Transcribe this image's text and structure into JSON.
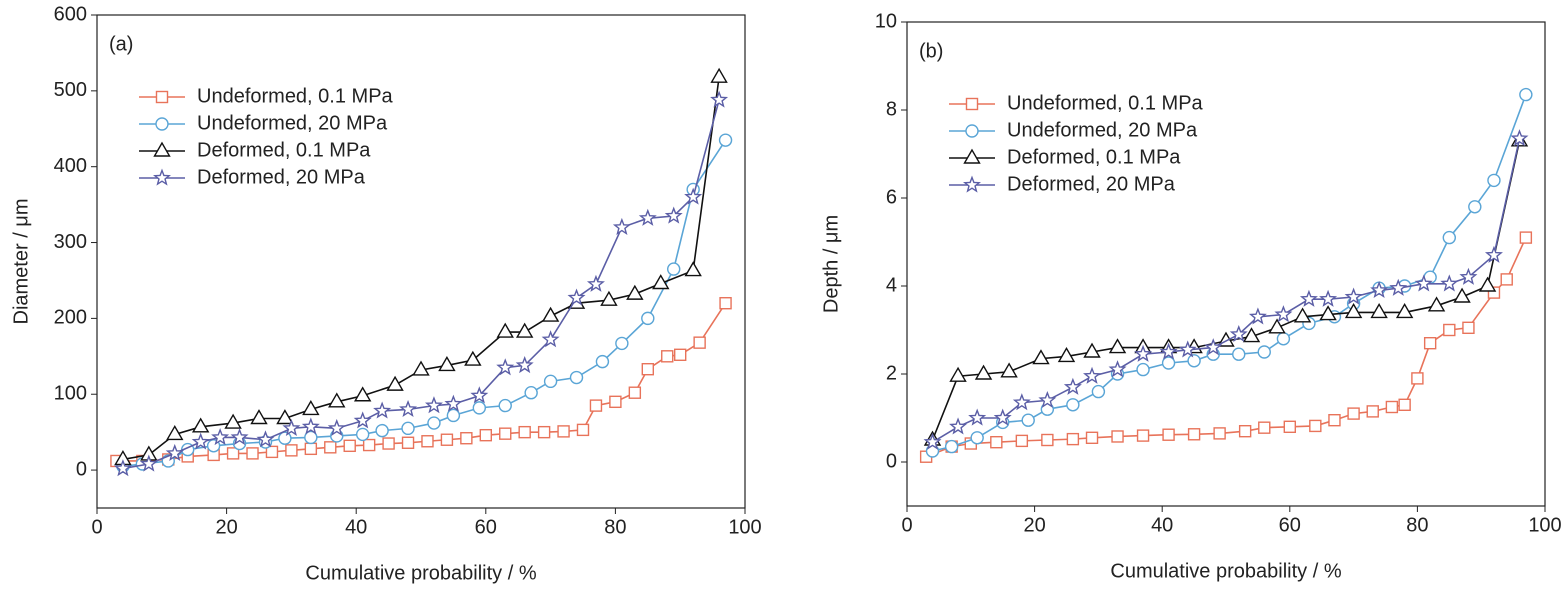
{
  "chart_data": [
    {
      "type": "line",
      "panel_label": "(a)",
      "xlabel": "Cumulative probability / %",
      "ylabel": "Diameter / μm",
      "xlim": [
        0,
        100
      ],
      "ylim": [
        -50,
        600
      ],
      "xticks": [
        0,
        20,
        40,
        60,
        80,
        100
      ],
      "yticks": [
        0,
        100,
        200,
        300,
        400,
        500,
        600
      ],
      "legend": "upper left",
      "series": [
        {
          "name": "Undeformed, 0.1 MPa",
          "color": "#e8735a",
          "marker": "square",
          "x": [
            3,
            7,
            11,
            14,
            18,
            21,
            24,
            27,
            30,
            33,
            36,
            39,
            42,
            45,
            48,
            51,
            54,
            57,
            60,
            63,
            66,
            69,
            72,
            75,
            77,
            80,
            83,
            85,
            88,
            90,
            93,
            97
          ],
          "values": [
            12,
            12,
            14,
            18,
            20,
            22,
            22,
            24,
            26,
            28,
            30,
            32,
            33,
            35,
            36,
            38,
            40,
            42,
            46,
            48,
            50,
            50,
            51,
            53,
            85,
            90,
            102,
            133,
            150,
            152,
            168,
            220
          ]
        },
        {
          "name": "Undeformed, 20 MPa",
          "color": "#5aa5d6",
          "marker": "circle",
          "x": [
            4,
            7,
            11,
            14,
            18,
            22,
            26,
            29,
            33,
            37,
            41,
            44,
            48,
            52,
            55,
            59,
            63,
            67,
            70,
            74,
            78,
            81,
            85,
            89,
            92,
            97
          ],
          "values": [
            5,
            8,
            12,
            27,
            32,
            35,
            37,
            42,
            43,
            45,
            47,
            52,
            55,
            62,
            72,
            82,
            85,
            102,
            117,
            122,
            143,
            167,
            200,
            265,
            370,
            435
          ]
        },
        {
          "name": "Deformed, 0.1 MPa",
          "color": "#111111",
          "marker": "triangle",
          "x": [
            4,
            8,
            12,
            16,
            21,
            25,
            29,
            33,
            37,
            41,
            46,
            50,
            54,
            58,
            63,
            66,
            70,
            74,
            79,
            83,
            87,
            92,
            96
          ],
          "values": [
            14,
            20,
            47,
            57,
            62,
            68,
            68,
            80,
            90,
            98,
            112,
            132,
            138,
            145,
            182,
            182,
            203,
            220,
            224,
            232,
            246,
            263,
            518
          ]
        },
        {
          "name": "Deformed, 20 MPa",
          "color": "#5b5ea6",
          "marker": "star",
          "x": [
            4,
            8,
            12,
            16,
            19,
            22,
            26,
            30,
            33,
            37,
            41,
            44,
            48,
            52,
            55,
            59,
            63,
            66,
            70,
            74,
            77,
            81,
            85,
            89,
            92,
            96
          ],
          "values": [
            2,
            8,
            22,
            37,
            43,
            43,
            40,
            55,
            57,
            55,
            65,
            78,
            80,
            85,
            87,
            98,
            135,
            138,
            172,
            227,
            245,
            320,
            332,
            335,
            360,
            488
          ]
        }
      ]
    },
    {
      "type": "line",
      "panel_label": "(b)",
      "xlabel": "Cumulative probability / %",
      "ylabel": "Depth / μm",
      "xlim": [
        0,
        100
      ],
      "ylim": [
        -1,
        10
      ],
      "xticks": [
        0,
        20,
        40,
        60,
        80,
        100
      ],
      "yticks": [
        0,
        2,
        4,
        6,
        8,
        10
      ],
      "legend": "upper left",
      "series": [
        {
          "name": "Undeformed, 0.1 MPa",
          "color": "#e8735a",
          "marker": "square",
          "x": [
            3,
            7,
            10,
            14,
            18,
            22,
            26,
            29,
            33,
            37,
            41,
            45,
            49,
            53,
            56,
            60,
            64,
            67,
            70,
            73,
            76,
            78,
            80,
            82,
            85,
            88,
            92,
            94,
            97
          ],
          "values": [
            0.12,
            0.35,
            0.42,
            0.45,
            0.48,
            0.5,
            0.52,
            0.55,
            0.58,
            0.6,
            0.62,
            0.63,
            0.65,
            0.7,
            0.78,
            0.8,
            0.82,
            0.95,
            1.1,
            1.15,
            1.25,
            1.3,
            1.9,
            2.7,
            3.0,
            3.05,
            3.85,
            4.15,
            5.1
          ]
        },
        {
          "name": "Undeformed, 20 MPa",
          "color": "#5aa5d6",
          "marker": "circle",
          "x": [
            4,
            7,
            11,
            15,
            19,
            22,
            26,
            30,
            33,
            37,
            41,
            45,
            48,
            52,
            56,
            59,
            63,
            67,
            70,
            74,
            78,
            82,
            85,
            89,
            92,
            97
          ],
          "values": [
            0.25,
            0.35,
            0.55,
            0.9,
            0.95,
            1.2,
            1.3,
            1.6,
            2.0,
            2.1,
            2.25,
            2.3,
            2.45,
            2.45,
            2.5,
            2.8,
            3.15,
            3.3,
            3.6,
            3.95,
            4.0,
            4.2,
            5.1,
            5.8,
            6.4,
            8.35
          ]
        },
        {
          "name": "Deformed, 0.1 MPa",
          "color": "#111111",
          "marker": "triangle",
          "x": [
            4,
            8,
            12,
            16,
            21,
            25,
            29,
            33,
            37,
            41,
            45,
            50,
            54,
            58,
            62,
            66,
            70,
            74,
            78,
            83,
            87,
            91,
            96
          ],
          "values": [
            0.5,
            1.95,
            2.0,
            2.05,
            2.35,
            2.4,
            2.5,
            2.6,
            2.6,
            2.6,
            2.6,
            2.75,
            2.85,
            3.05,
            3.3,
            3.35,
            3.4,
            3.4,
            3.4,
            3.55,
            3.75,
            4.0,
            7.3
          ]
        },
        {
          "name": "Deformed, 20 MPa",
          "color": "#5b5ea6",
          "marker": "star",
          "x": [
            4,
            8,
            11,
            15,
            18,
            22,
            26,
            29,
            33,
            37,
            41,
            44,
            48,
            52,
            55,
            59,
            63,
            66,
            70,
            74,
            77,
            81,
            85,
            88,
            92,
            96
          ],
          "values": [
            0.45,
            0.8,
            1.0,
            1.0,
            1.35,
            1.4,
            1.7,
            1.95,
            2.1,
            2.45,
            2.5,
            2.55,
            2.6,
            2.9,
            3.3,
            3.35,
            3.7,
            3.7,
            3.75,
            3.9,
            3.95,
            4.05,
            4.05,
            4.2,
            4.7,
            7.35
          ]
        }
      ]
    }
  ]
}
